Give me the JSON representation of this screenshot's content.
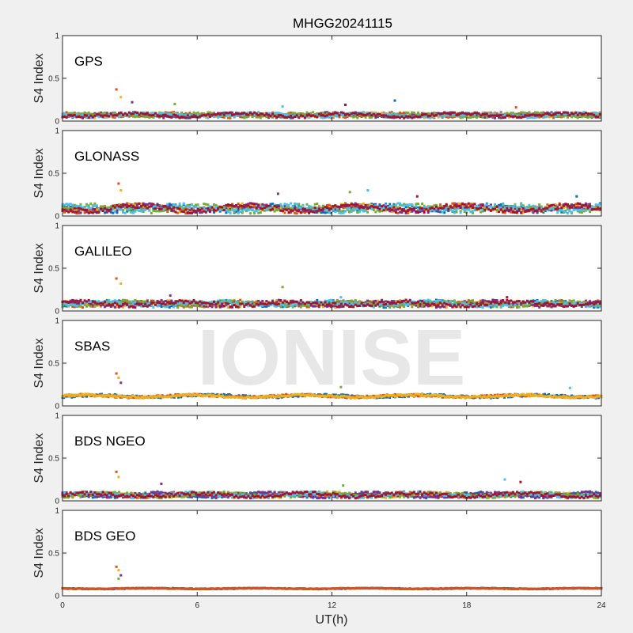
{
  "title": "MHGG20241115",
  "watermark": "IONISE",
  "chart_data": {
    "type": "scatter",
    "ylabel": "S4 Index",
    "xlabel": "UT(h)",
    "xlim": [
      0,
      24
    ],
    "ylim": [
      0,
      1
    ],
    "xticks": [
      "0",
      "6",
      "12",
      "18",
      "24"
    ],
    "yticks": [
      "0",
      "0.5",
      "1"
    ],
    "colors": [
      "#0072BD",
      "#D95319",
      "#EDB120",
      "#7E2F8E",
      "#77AC30",
      "#4DBEEE",
      "#A2142F"
    ],
    "panels": [
      {
        "label": "GPS",
        "baseline": 0.07,
        "amplitude": 0.035,
        "nseries": 7,
        "spikes": [
          {
            "x": 2.4,
            "y": 0.37
          },
          {
            "x": 2.6,
            "y": 0.28
          },
          {
            "x": 3.1,
            "y": 0.22
          },
          {
            "x": 5.0,
            "y": 0.2
          },
          {
            "x": 9.8,
            "y": 0.17
          },
          {
            "x": 12.6,
            "y": 0.19
          },
          {
            "x": 14.8,
            "y": 0.24
          },
          {
            "x": 20.2,
            "y": 0.16
          }
        ]
      },
      {
        "label": "GLONASS",
        "baseline": 0.09,
        "amplitude": 0.06,
        "nseries": 7,
        "spikes": [
          {
            "x": 2.5,
            "y": 0.38
          },
          {
            "x": 2.6,
            "y": 0.3
          },
          {
            "x": 9.6,
            "y": 0.26
          },
          {
            "x": 12.8,
            "y": 0.28
          },
          {
            "x": 13.6,
            "y": 0.3
          },
          {
            "x": 15.8,
            "y": 0.23
          },
          {
            "x": 22.9,
            "y": 0.23
          }
        ]
      },
      {
        "label": "GALILEO",
        "baseline": 0.085,
        "amplitude": 0.045,
        "nseries": 7,
        "spikes": [
          {
            "x": 2.4,
            "y": 0.38
          },
          {
            "x": 2.6,
            "y": 0.32
          },
          {
            "x": 4.8,
            "y": 0.18
          },
          {
            "x": 9.8,
            "y": 0.28
          },
          {
            "x": 12.4,
            "y": 0.16
          },
          {
            "x": 19.8,
            "y": 0.16
          }
        ]
      },
      {
        "label": "SBAS",
        "baseline": 0.115,
        "amplitude": 0.025,
        "nseries": 3,
        "spikes": [
          {
            "x": 2.4,
            "y": 0.38
          },
          {
            "x": 2.5,
            "y": 0.33
          },
          {
            "x": 2.6,
            "y": 0.27
          },
          {
            "x": 12.4,
            "y": 0.22
          },
          {
            "x": 22.6,
            "y": 0.21
          }
        ]
      },
      {
        "label": "BDS NGEO",
        "baseline": 0.07,
        "amplitude": 0.04,
        "nseries": 7,
        "spikes": [
          {
            "x": 2.4,
            "y": 0.34
          },
          {
            "x": 2.5,
            "y": 0.28
          },
          {
            "x": 4.4,
            "y": 0.2
          },
          {
            "x": 12.5,
            "y": 0.18
          },
          {
            "x": 19.7,
            "y": 0.25
          },
          {
            "x": 20.4,
            "y": 0.22
          }
        ]
      },
      {
        "label": "BDS GEO",
        "baseline": 0.085,
        "amplitude": 0.008,
        "nseries": 2,
        "spikes": [
          {
            "x": 2.4,
            "y": 0.34
          },
          {
            "x": 2.5,
            "y": 0.3
          },
          {
            "x": 2.6,
            "y": 0.24
          },
          {
            "x": 2.5,
            "y": 0.2
          }
        ]
      }
    ]
  }
}
